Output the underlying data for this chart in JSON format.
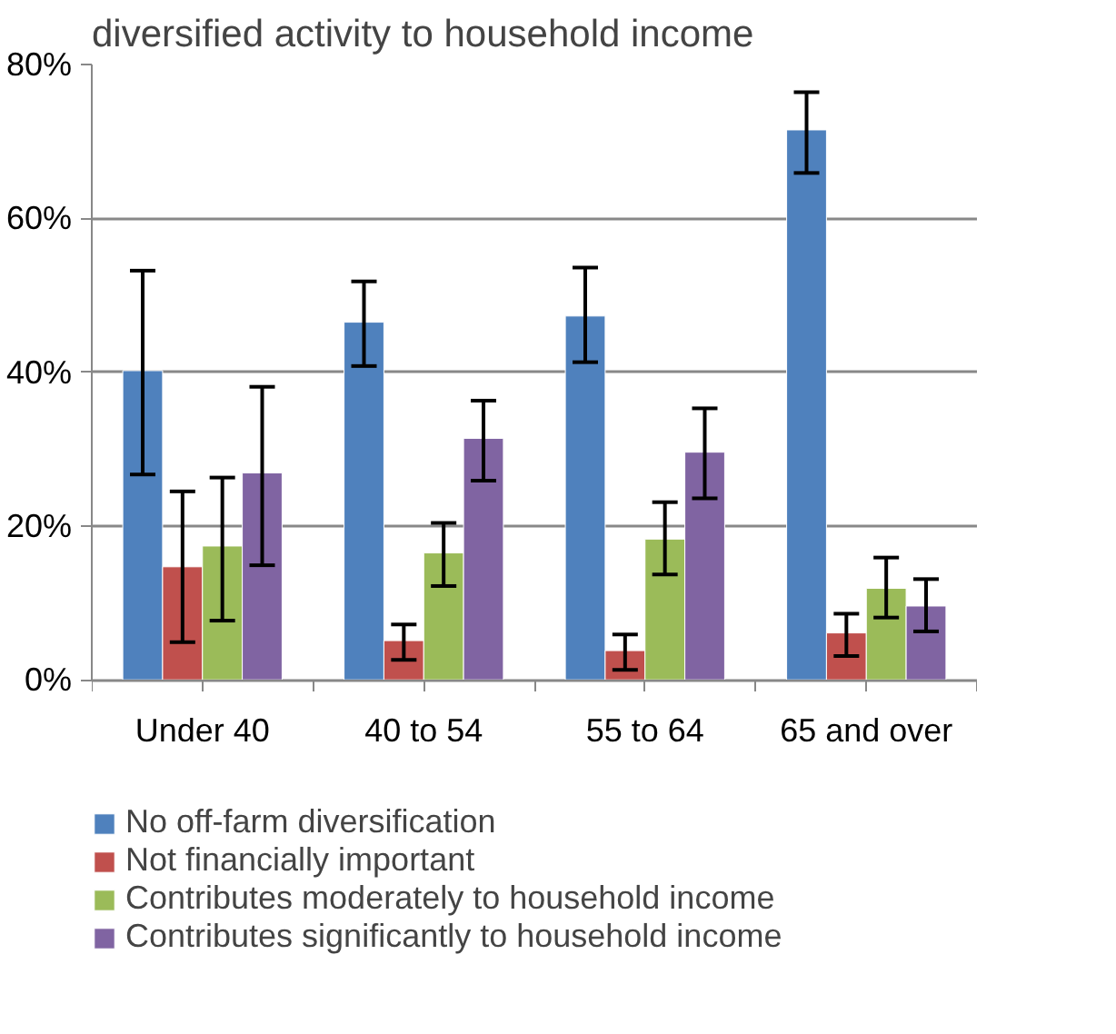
{
  "chart_data": {
    "type": "bar",
    "title": "diversified activity to household income",
    "categories": [
      "Under 40",
      "40 to 54",
      "55 to 64",
      "65 and over"
    ],
    "series": [
      {
        "name": "No off-farm diversification",
        "color": "#4f81bd",
        "values": [
          40.2,
          46.5,
          47.3,
          71.5
        ],
        "errors": [
          [
            26.7,
            53.2
          ],
          [
            40.8,
            51.8
          ],
          [
            41.3,
            53.6
          ],
          [
            65.9,
            76.4
          ]
        ]
      },
      {
        "name": "Not financially important",
        "color": "#c0504d",
        "values": [
          14.7,
          5.1,
          3.8,
          6.1
        ],
        "errors": [
          [
            4.9,
            24.5
          ],
          [
            2.6,
            7.2
          ],
          [
            1.3,
            5.9
          ],
          [
            3.1,
            8.6
          ]
        ]
      },
      {
        "name": "Contributes moderately to household income",
        "color": "#9bbb59",
        "values": [
          17.4,
          16.5,
          18.3,
          11.9
        ],
        "errors": [
          [
            7.7,
            26.3
          ],
          [
            12.2,
            20.4
          ],
          [
            13.7,
            23.1
          ],
          [
            8.1,
            15.9
          ]
        ]
      },
      {
        "name": "Contributes significantly to household income",
        "color": "#8064a2",
        "values": [
          26.9,
          31.4,
          29.6,
          9.6
        ],
        "errors": [
          [
            14.9,
            38.1
          ],
          [
            25.9,
            36.3
          ],
          [
            23.6,
            35.3
          ],
          [
            6.3,
            13.1
          ]
        ]
      }
    ],
    "ylim": [
      0,
      80
    ],
    "yticks": [
      {
        "value": 0,
        "label": "0%"
      },
      {
        "value": 20,
        "label": "20%"
      },
      {
        "value": 40,
        "label": "40%"
      },
      {
        "value": 60,
        "label": "60%"
      },
      {
        "value": 80,
        "label": "80%"
      }
    ],
    "grid": "y",
    "legend": "bottom"
  }
}
